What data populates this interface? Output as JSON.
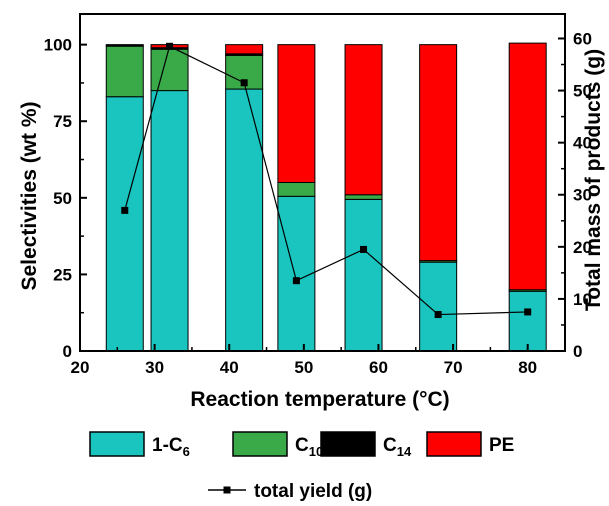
{
  "chart_data": {
    "type": "bar",
    "xlabel": "Reaction temperature (°C)",
    "ylabel": "Selectivities (wt %)",
    "y2label": "Total mass of products (g)",
    "xlim": [
      20,
      85
    ],
    "ylim": [
      0,
      110
    ],
    "y2lim": [
      0,
      64.7
    ],
    "x_ticks": [
      "20",
      "30",
      "40",
      "50",
      "60",
      "70",
      "80"
    ],
    "y_ticks": [
      "0",
      "25",
      "50",
      "75",
      "100"
    ],
    "y2_ticks": [
      "0",
      "10",
      "20",
      "30",
      "40",
      "50",
      "60"
    ],
    "x": [
      26,
      32,
      42,
      49,
      58,
      68,
      80
    ],
    "stack_order": [
      "1-C6",
      "C10",
      "C14",
      "PE"
    ],
    "series": [
      {
        "name": "1-C6",
        "label_main": "1-C",
        "label_sub": "6",
        "color": "#1ac5bf",
        "values": [
          83,
          85,
          85.5,
          50.5,
          49.5,
          29,
          19.5
        ]
      },
      {
        "name": "C10",
        "label_main": "C",
        "label_sub": "10",
        "color": "#3aaa48",
        "values": [
          16.5,
          13.5,
          11,
          4.5,
          1.5,
          0.5,
          0.5
        ]
      },
      {
        "name": "C14",
        "label_main": "C",
        "label_sub": "14",
        "color": "#000000",
        "values": [
          0.5,
          0.5,
          0.5,
          0,
          0,
          0,
          0
        ]
      },
      {
        "name": "PE",
        "label_main": "PE",
        "label_sub": "",
        "color": "#ff0000",
        "values": [
          0,
          1,
          3,
          45,
          49,
          70.5,
          80.5
        ]
      }
    ],
    "line_series": {
      "name": "total yield (g)",
      "axis": "right",
      "color": "#000000",
      "x": [
        26,
        32,
        42,
        49,
        58,
        68,
        80
      ],
      "values": [
        27,
        58.5,
        51.5,
        13.5,
        19.5,
        7,
        7.5
      ]
    },
    "legend_placement": "bottom",
    "grid": false
  }
}
